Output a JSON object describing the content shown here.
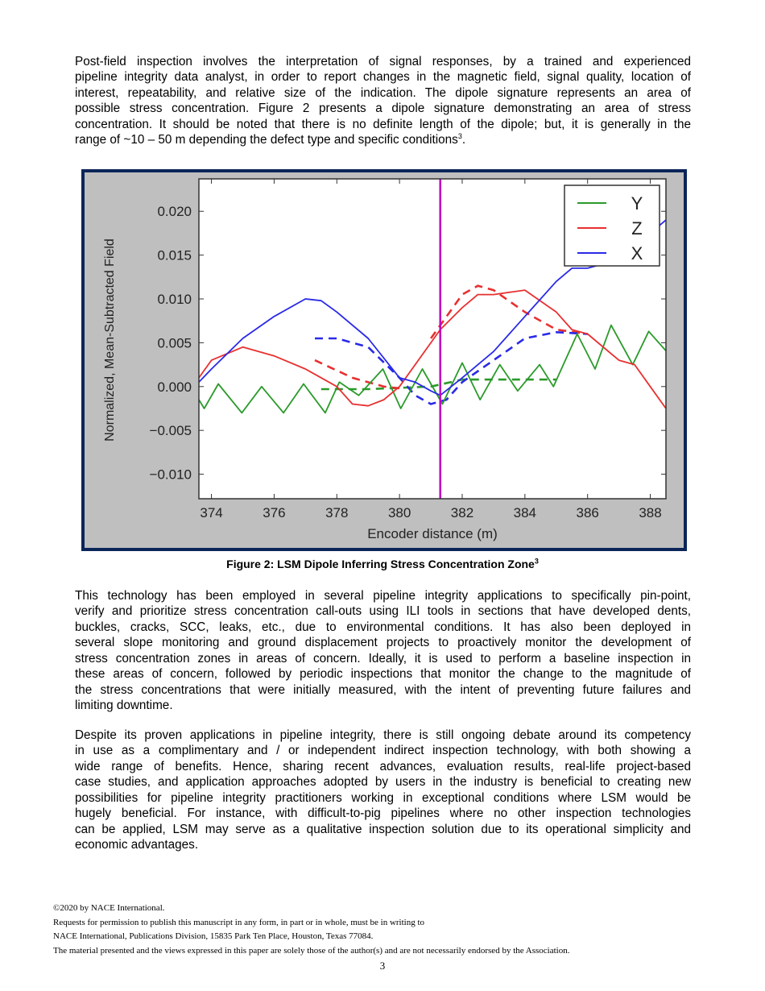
{
  "paragraphs": [
    {
      "lines": [
        "Post-field inspection involves the interpretation of signal responses, by a trained and experienced",
        "pipeline integrity data analyst, in order to report changes in the magnetic field, signal quality, location of",
        "interest, repeatability, and relative size of the indication.  The dipole signature represents an area of",
        "possible stress concentration.  Figure 2 presents a dipole signature demonstrating an area of stress",
        "concentration.  It should be noted that there is no definite length of the dipole; but, it is generally in the",
        "range of ~10 – 50 m depending the defect type and specific conditions"
      ],
      "last_sup": "3",
      "last_tail": "."
    },
    {
      "lines": [
        "This technology has been employed in several pipeline integrity applications to specifically pin-point,",
        "verify and prioritize stress concentration call-outs using ILI tools in sections that have developed dents,",
        "buckles, cracks, SCC, leaks, etc., due to environmental conditions.  It has also been deployed in",
        "several slope monitoring and ground displacement projects to proactively monitor the development of",
        "stress concentration zones in areas of concern.  Ideally, it is used to perform a baseline inspection in",
        "these areas of concern, followed by periodic inspections that monitor the change to the magnitude of",
        "the stress concentrations that were initially measured, with the intent of preventing future failures and",
        "limiting downtime."
      ]
    },
    {
      "lines": [
        "Despite its proven applications in pipeline integrity, there is still ongoing debate around its competency",
        "in use as a complimentary and / or independent indirect inspection technology, with both showing a",
        "wide range of benefits.  Hence, sharing recent advances, evaluation results, real-life project-based",
        "case studies, and application approaches adopted by users in the industry is beneficial to creating new",
        "possibilities for pipeline integrity practitioners working in exceptional conditions where LSM would be",
        "hugely beneficial.  For instance, with difficult-to-pig pipelines where no other inspection technologies",
        "can be applied, LSM may serve as a qualitative inspection solution due to its operational simplicity and",
        "economic advantages."
      ]
    }
  ],
  "figure": {
    "caption": "Figure 2: LSM Dipole Inferring Stress Concentration Zone",
    "caption_sup": "3"
  },
  "chart_data": {
    "type": "line",
    "xlabel": "Encoder distance (m)",
    "ylabel": "Normalized, Mean-Subtracted Field",
    "xlim": [
      373.6,
      388.5
    ],
    "ylim": [
      -0.0128,
      0.0237
    ],
    "xticks": [
      "374",
      "376",
      "378",
      "380",
      "382",
      "384",
      "386",
      "388"
    ],
    "yticks": [
      "0.020",
      "0.015",
      "0.010",
      "0.005",
      "0.000",
      "−0.005",
      "−0.010"
    ],
    "grid": false,
    "legend_position": "top-right",
    "marker_line_x": 381.3,
    "marker_line_color": "#c000c0",
    "series": [
      {
        "name": "Y",
        "color": "#2a9a2a",
        "points": [
          [
            373.6,
            -0.0015
          ],
          [
            373.77,
            -0.0025
          ],
          [
            374.22,
            0.0003
          ],
          [
            374.97,
            -0.003
          ],
          [
            375.6,
            0.0
          ],
          [
            376.3,
            -0.003
          ],
          [
            376.94,
            0.0003
          ],
          [
            377.63,
            -0.003
          ],
          [
            378.08,
            0.0005
          ],
          [
            378.7,
            -0.001
          ],
          [
            379.47,
            0.002
          ],
          [
            380.04,
            -0.0025
          ],
          [
            380.73,
            0.002
          ],
          [
            381.37,
            -0.002
          ],
          [
            382.0,
            0.0027
          ],
          [
            382.57,
            -0.0015
          ],
          [
            383.2,
            0.0025
          ],
          [
            383.77,
            -0.0005
          ],
          [
            384.47,
            0.0025
          ],
          [
            384.91,
            0.0
          ],
          [
            385.67,
            0.006
          ],
          [
            386.24,
            0.002
          ],
          [
            386.75,
            0.007
          ],
          [
            387.44,
            0.0025
          ],
          [
            387.95,
            0.0063
          ],
          [
            388.52,
            0.004
          ]
        ]
      },
      {
        "name": "Z",
        "color": "#e83030",
        "points": [
          [
            373.6,
            0.001
          ],
          [
            374,
            0.003
          ],
          [
            375,
            0.0045
          ],
          [
            376,
            0.0035
          ],
          [
            377,
            0.002
          ],
          [
            378,
            0.0
          ],
          [
            378.5,
            -0.002
          ],
          [
            379,
            -0.0022
          ],
          [
            379.5,
            -0.0015
          ],
          [
            380,
            0.0
          ],
          [
            381,
            0.005
          ],
          [
            381.3,
            0.0065
          ],
          [
            382,
            0.009
          ],
          [
            382.5,
            0.0105
          ],
          [
            383,
            0.0105
          ],
          [
            384,
            0.011
          ],
          [
            385,
            0.0085
          ],
          [
            385.5,
            0.0065
          ],
          [
            386,
            0.006
          ],
          [
            387,
            0.003
          ],
          [
            387.5,
            0.0025
          ],
          [
            388,
            0.0
          ],
          [
            388.5,
            -0.0025
          ]
        ]
      },
      {
        "name": "X",
        "color": "#2a2ae8",
        "points": [
          [
            373.6,
            0.0005
          ],
          [
            374,
            0.002
          ],
          [
            375,
            0.0055
          ],
          [
            376,
            0.008
          ],
          [
            377,
            0.01
          ],
          [
            377.5,
            0.0098
          ],
          [
            378,
            0.0085
          ],
          [
            379,
            0.0055
          ],
          [
            380,
            0.001
          ],
          [
            380.5,
            0.0005
          ],
          [
            381,
            -0.0005
          ],
          [
            381.3,
            -0.001
          ],
          [
            382,
            0.001
          ],
          [
            383,
            0.004
          ],
          [
            384,
            0.008
          ],
          [
            385,
            0.012
          ],
          [
            385.5,
            0.0135
          ],
          [
            386,
            0.0135
          ],
          [
            386.5,
            0.014
          ],
          [
            387,
            0.0155
          ],
          [
            388,
            0.0175
          ],
          [
            388.5,
            0.019
          ]
        ]
      }
    ],
    "fits": [
      {
        "series": "Y",
        "style": "dashed",
        "color": "#2a9a2a",
        "points": [
          [
            377.5,
            -0.0003
          ],
          [
            379,
            -0.0003
          ],
          [
            381,
            0.0
          ],
          [
            382,
            0.0008
          ],
          [
            385,
            0.0008
          ]
        ]
      },
      {
        "series": "Z",
        "style": "dashed",
        "color": "#e83030",
        "points": [
          [
            377.3,
            0.003
          ],
          [
            378.5,
            0.001
          ],
          [
            379.5,
            0.0
          ],
          [
            380,
            -0.0002
          ]
        ]
      },
      {
        "series": "Z",
        "style": "dashed",
        "color": "#e83030",
        "points": [
          [
            381,
            0.0055
          ],
          [
            382,
            0.0105
          ],
          [
            382.5,
            0.0115
          ],
          [
            383,
            0.011
          ],
          [
            384,
            0.0085
          ],
          [
            385,
            0.0065
          ],
          [
            386,
            0.006
          ]
        ]
      },
      {
        "series": "X",
        "style": "dashed",
        "color": "#2a2ae8",
        "points": [
          [
            377.3,
            0.0055
          ],
          [
            378,
            0.0055
          ],
          [
            379,
            0.0045
          ],
          [
            380,
            0.001
          ],
          [
            380.5,
            -0.001
          ],
          [
            381,
            -0.002
          ],
          [
            381.5,
            -0.0015
          ],
          [
            382,
            0.0005
          ],
          [
            383,
            0.003
          ],
          [
            384,
            0.0055
          ],
          [
            385,
            0.0062
          ],
          [
            386,
            0.006
          ]
        ]
      }
    ]
  },
  "footer": {
    "lines": [
      "©2020 by NACE International.",
      "Requests for permission to publish this manuscript in any form, in part or in whole, must be in writing to",
      "NACE International, Publications Division, 15835 Park Ten Place, Houston, Texas 77084.",
      "The material presented and the views expressed in this paper are solely those of the author(s) and are not necessarily endorsed by the Association."
    ],
    "page_number": "3"
  }
}
